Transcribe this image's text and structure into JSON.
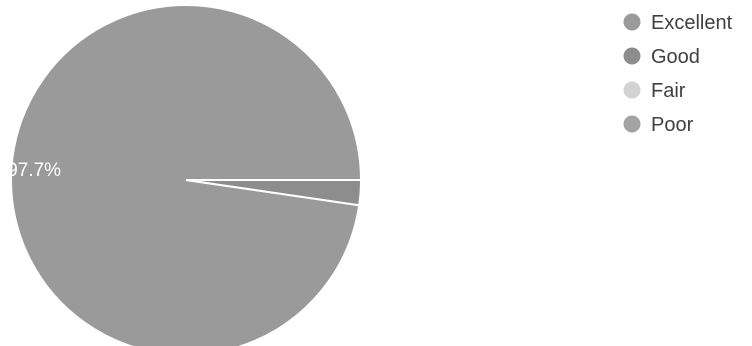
{
  "chart_data": {
    "type": "pie",
    "title": "",
    "slices": [
      {
        "name": "Excellent",
        "value": 97.7,
        "color": "#9a9a9a",
        "label": "97.7%"
      },
      {
        "name": "Good",
        "value": 2.3,
        "color": "#8d8d8d",
        "label": ""
      },
      {
        "name": "Fair",
        "value": 0.0,
        "color": "#d2d2d2",
        "label": ""
      },
      {
        "name": "Poor",
        "value": 0.0,
        "color": "#a3a3a3",
        "label": ""
      }
    ],
    "legend": {
      "position": "top-right",
      "items": [
        "Excellent",
        "Good",
        "Fair",
        "Poor"
      ]
    }
  }
}
